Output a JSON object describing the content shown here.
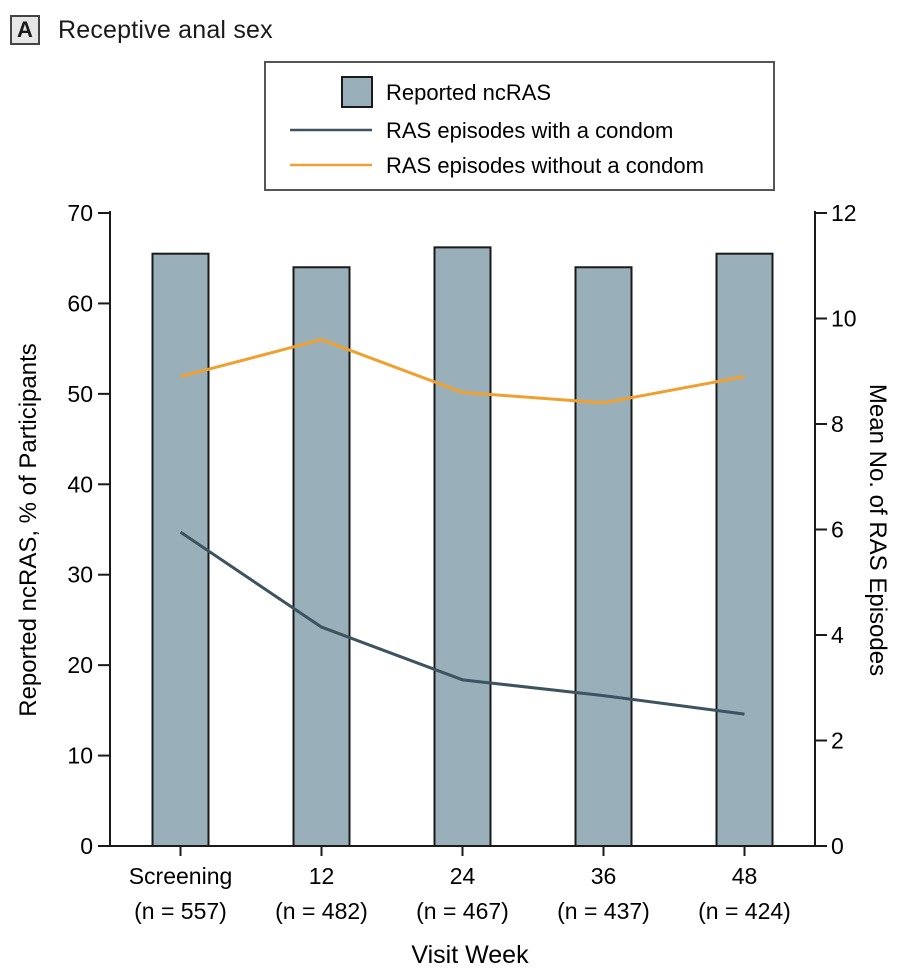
{
  "panel": {
    "letter": "A",
    "title": "Receptive anal sex"
  },
  "colors": {
    "bar": "#99b0bb",
    "bar_stroke": "#1a1a1a",
    "line_condom": "#3d5360",
    "line_no_condom": "#f0a030",
    "axis": "#1a1a1a"
  },
  "chart_data": {
    "type": "bar",
    "xlabel": "Visit Week",
    "ylabel_left": "Reported ncRAS, % of Participants",
    "ylabel_right": "Mean No. of RAS Episodes",
    "ylim_left": [
      0,
      70
    ],
    "ylim_right": [
      0,
      12
    ],
    "yticks_left": [
      "0",
      "10",
      "20",
      "30",
      "40",
      "50",
      "60",
      "70"
    ],
    "yticks_right": [
      "0",
      "2",
      "4",
      "6",
      "8",
      "10",
      "12"
    ],
    "categories": [
      {
        "label": "Screening",
        "n": "(n = 557)"
      },
      {
        "label": "12",
        "n": "(n = 482)"
      },
      {
        "label": "24",
        "n": "(n = 467)"
      },
      {
        "label": "36",
        "n": "(n = 437)"
      },
      {
        "label": "48",
        "n": "(n = 424)"
      }
    ],
    "series": [
      {
        "name": "Reported ncRAS",
        "type": "bar",
        "axis": "left",
        "values": [
          65.5,
          64,
          66.2,
          64,
          65.5
        ]
      },
      {
        "name": "RAS episodes with a condom",
        "type": "line",
        "axis": "right",
        "values": [
          5.95,
          4.15,
          3.15,
          2.85,
          2.5
        ]
      },
      {
        "name": "RAS episodes without a condom",
        "type": "line",
        "axis": "right",
        "values": [
          8.9,
          9.6,
          8.6,
          8.4,
          8.9
        ]
      }
    ],
    "legend_position": "top"
  }
}
